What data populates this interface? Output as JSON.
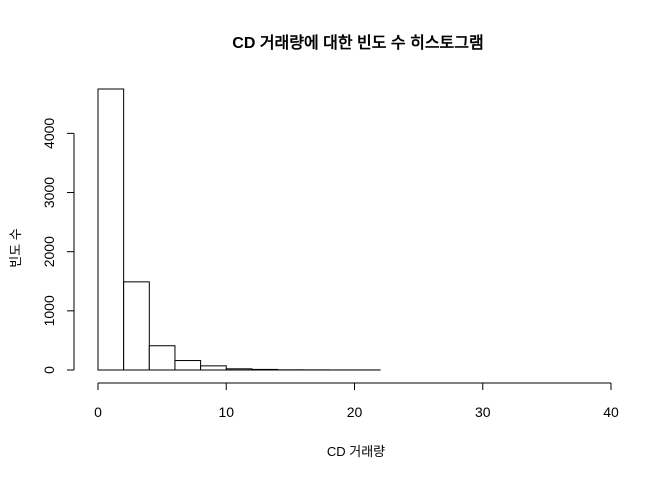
{
  "chart_data": {
    "type": "histogram",
    "title": "CD 거래량에 대한 빈도 수 히스토그램",
    "xlabel": "CD 거래량",
    "ylabel": "빈도 수",
    "bin_width": 2,
    "bins": [
      {
        "x0": 0,
        "x1": 2,
        "count": 4750
      },
      {
        "x0": 2,
        "x1": 4,
        "count": 1490
      },
      {
        "x0": 4,
        "x1": 6,
        "count": 410
      },
      {
        "x0": 6,
        "x1": 8,
        "count": 160
      },
      {
        "x0": 8,
        "x1": 10,
        "count": 70
      },
      {
        "x0": 10,
        "x1": 12,
        "count": 20
      },
      {
        "x0": 12,
        "x1": 14,
        "count": 10
      },
      {
        "x0": 14,
        "x1": 16,
        "count": 3
      },
      {
        "x0": 16,
        "x1": 18,
        "count": 2
      },
      {
        "x0": 18,
        "x1": 20,
        "count": 1
      },
      {
        "x0": 20,
        "x1": 22,
        "count": 1
      },
      {
        "x0": 22,
        "x1": 24,
        "count": 0
      },
      {
        "x0": 24,
        "x1": 26,
        "count": 0
      },
      {
        "x0": 26,
        "x1": 28,
        "count": 0
      },
      {
        "x0": 28,
        "x1": 30,
        "count": 0
      },
      {
        "x0": 30,
        "x1": 32,
        "count": 0
      },
      {
        "x0": 32,
        "x1": 34,
        "count": 0
      },
      {
        "x0": 34,
        "x1": 36,
        "count": 0
      },
      {
        "x0": 36,
        "x1": 38,
        "count": 0
      },
      {
        "x0": 38,
        "x1": 40,
        "count": 0
      }
    ],
    "xlim": [
      0,
      40
    ],
    "ylim": [
      0,
      4750
    ],
    "x_ticks": [
      0,
      10,
      20,
      30,
      40
    ],
    "y_ticks": [
      0,
      1000,
      2000,
      3000,
      4000
    ],
    "grid": false,
    "legend": "none"
  }
}
